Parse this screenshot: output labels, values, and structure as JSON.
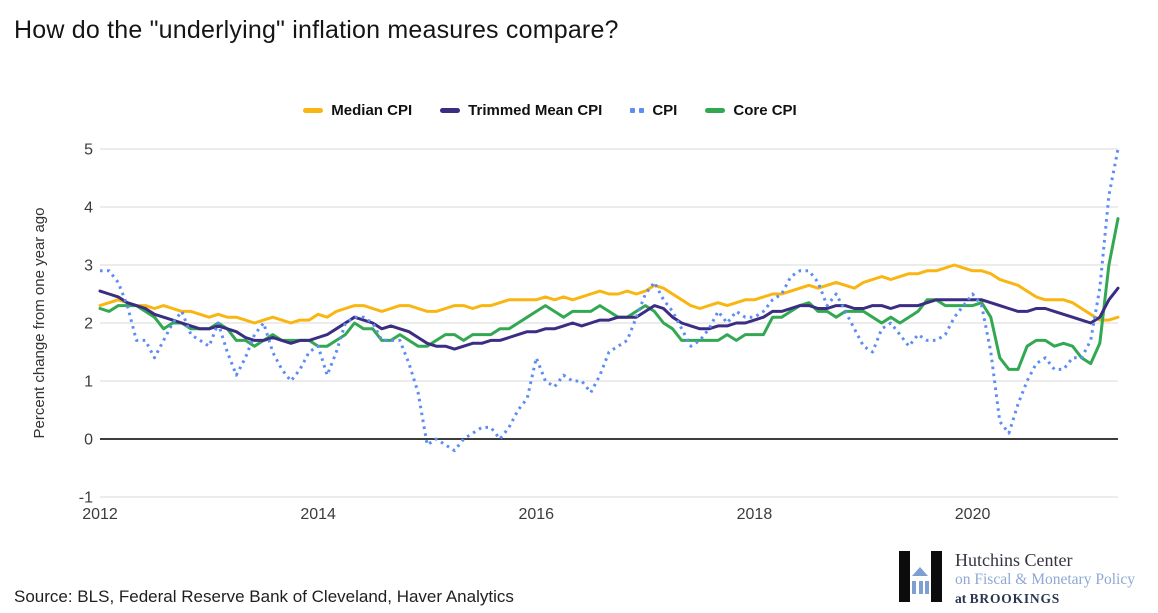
{
  "page": {
    "title": "How do the \"underlying\" inflation measures compare?",
    "source_note": "Source: BLS, Federal Reserve Bank of Cleveland, Haver Analytics"
  },
  "logo": {
    "line1": "Hutchins Center",
    "line2": "on Fiscal & Monetary Policy",
    "line3_prefix": "at",
    "line3_name": "BROOKINGS",
    "mark_color": "#0c0c0c",
    "accent_color": "#7d9fd3",
    "name_color": "#35343f"
  },
  "chart_data": {
    "type": "line",
    "title": "How do the \"underlying\" inflation measures compare?",
    "xlabel": "",
    "ylabel": "Percent change from one year ago",
    "ylim": [
      -1,
      5
    ],
    "yticks": [
      5,
      4,
      3,
      2,
      1,
      0,
      -1
    ],
    "x_start": "2012-01",
    "x_end": "2021-05",
    "x_frequency": "monthly",
    "xticks": [
      {
        "label": "2012",
        "index": 0
      },
      {
        "label": "2014",
        "index": 24
      },
      {
        "label": "2016",
        "index": 48
      },
      {
        "label": "2018",
        "index": 72
      },
      {
        "label": "2020",
        "index": 96
      }
    ],
    "grid": "horizontal",
    "legend_position": "top",
    "background": "#ffffff",
    "series": [
      {
        "name": "Median CPI",
        "color": "#F9B612",
        "style": "solid",
        "values": [
          2.3,
          2.35,
          2.4,
          2.35,
          2.3,
          2.3,
          2.25,
          2.3,
          2.25,
          2.2,
          2.2,
          2.15,
          2.1,
          2.15,
          2.1,
          2.1,
          2.05,
          2.0,
          2.05,
          2.1,
          2.05,
          2.0,
          2.05,
          2.05,
          2.15,
          2.1,
          2.2,
          2.25,
          2.3,
          2.3,
          2.25,
          2.2,
          2.25,
          2.3,
          2.3,
          2.25,
          2.2,
          2.2,
          2.25,
          2.3,
          2.3,
          2.25,
          2.3,
          2.3,
          2.35,
          2.4,
          2.4,
          2.4,
          2.4,
          2.45,
          2.4,
          2.45,
          2.4,
          2.45,
          2.5,
          2.55,
          2.5,
          2.5,
          2.55,
          2.5,
          2.55,
          2.65,
          2.6,
          2.5,
          2.4,
          2.3,
          2.25,
          2.3,
          2.35,
          2.3,
          2.35,
          2.4,
          2.4,
          2.45,
          2.5,
          2.5,
          2.55,
          2.6,
          2.65,
          2.6,
          2.65,
          2.7,
          2.65,
          2.6,
          2.7,
          2.75,
          2.8,
          2.75,
          2.8,
          2.85,
          2.85,
          2.9,
          2.9,
          2.95,
          3.0,
          2.95,
          2.9,
          2.9,
          2.85,
          2.75,
          2.7,
          2.65,
          2.55,
          2.45,
          2.4,
          2.4,
          2.4,
          2.35,
          2.25,
          2.15,
          2.05,
          2.05,
          2.1
        ]
      },
      {
        "name": "Trimmed Mean CPI",
        "color": "#3B2D82",
        "style": "solid",
        "values": [
          2.55,
          2.5,
          2.45,
          2.35,
          2.3,
          2.25,
          2.15,
          2.1,
          2.05,
          2.0,
          1.95,
          1.9,
          1.9,
          1.95,
          1.9,
          1.85,
          1.75,
          1.7,
          1.7,
          1.75,
          1.7,
          1.65,
          1.7,
          1.7,
          1.75,
          1.8,
          1.9,
          2.0,
          2.1,
          2.05,
          2.0,
          1.9,
          1.95,
          1.9,
          1.85,
          1.75,
          1.65,
          1.6,
          1.6,
          1.55,
          1.6,
          1.65,
          1.65,
          1.7,
          1.7,
          1.75,
          1.8,
          1.85,
          1.85,
          1.9,
          1.9,
          1.95,
          2.0,
          1.95,
          2.0,
          2.05,
          2.05,
          2.1,
          2.1,
          2.1,
          2.2,
          2.3,
          2.25,
          2.1,
          2.0,
          1.95,
          1.9,
          1.9,
          1.95,
          1.95,
          2.0,
          2.0,
          2.05,
          2.1,
          2.2,
          2.2,
          2.25,
          2.3,
          2.3,
          2.25,
          2.25,
          2.3,
          2.3,
          2.25,
          2.25,
          2.3,
          2.3,
          2.25,
          2.3,
          2.3,
          2.3,
          2.35,
          2.4,
          2.4,
          2.4,
          2.4,
          2.4,
          2.4,
          2.35,
          2.3,
          2.25,
          2.2,
          2.2,
          2.25,
          2.25,
          2.2,
          2.15,
          2.1,
          2.05,
          2.0,
          2.1,
          2.4,
          2.6
        ]
      },
      {
        "name": "CPI",
        "color": "#5C8DF5",
        "style": "dotted",
        "values": [
          2.9,
          2.9,
          2.7,
          2.3,
          1.7,
          1.7,
          1.4,
          1.7,
          2.0,
          2.2,
          1.8,
          1.7,
          1.6,
          2.0,
          1.5,
          1.1,
          1.4,
          1.8,
          2.0,
          1.5,
          1.2,
          1.0,
          1.2,
          1.5,
          1.6,
          1.1,
          1.5,
          2.0,
          2.1,
          2.1,
          2.0,
          1.7,
          1.7,
          1.7,
          1.3,
          0.8,
          -0.1,
          0.0,
          -0.1,
          -0.2,
          0.0,
          0.1,
          0.2,
          0.2,
          0.0,
          0.2,
          0.5,
          0.7,
          1.4,
          1.0,
          0.9,
          1.1,
          1.0,
          1.0,
          0.8,
          1.1,
          1.5,
          1.6,
          1.7,
          2.1,
          2.5,
          2.7,
          2.4,
          2.2,
          1.9,
          1.6,
          1.7,
          1.9,
          2.2,
          2.0,
          2.2,
          2.1,
          2.1,
          2.2,
          2.4,
          2.5,
          2.8,
          2.9,
          2.9,
          2.7,
          2.3,
          2.5,
          2.2,
          1.9,
          1.6,
          1.5,
          1.9,
          2.0,
          1.8,
          1.6,
          1.8,
          1.7,
          1.7,
          1.8,
          2.1,
          2.3,
          2.5,
          2.3,
          1.5,
          0.3,
          0.1,
          0.6,
          1.0,
          1.3,
          1.4,
          1.2,
          1.2,
          1.4,
          1.4,
          1.7,
          2.6,
          4.2,
          5.0
        ]
      },
      {
        "name": "Core CPI",
        "color": "#33A852",
        "style": "solid",
        "values": [
          2.25,
          2.2,
          2.3,
          2.3,
          2.3,
          2.2,
          2.1,
          1.9,
          2.0,
          2.0,
          1.9,
          1.9,
          1.9,
          2.0,
          1.9,
          1.7,
          1.7,
          1.6,
          1.7,
          1.8,
          1.7,
          1.7,
          1.7,
          1.7,
          1.6,
          1.6,
          1.7,
          1.8,
          2.0,
          1.9,
          1.9,
          1.7,
          1.7,
          1.8,
          1.7,
          1.6,
          1.6,
          1.7,
          1.8,
          1.8,
          1.7,
          1.8,
          1.8,
          1.8,
          1.9,
          1.9,
          2.0,
          2.1,
          2.2,
          2.3,
          2.2,
          2.1,
          2.2,
          2.2,
          2.2,
          2.3,
          2.2,
          2.1,
          2.1,
          2.2,
          2.3,
          2.2,
          2.0,
          1.9,
          1.7,
          1.7,
          1.7,
          1.7,
          1.7,
          1.8,
          1.7,
          1.8,
          1.8,
          1.8,
          2.1,
          2.1,
          2.2,
          2.3,
          2.35,
          2.2,
          2.2,
          2.1,
          2.2,
          2.2,
          2.2,
          2.1,
          2.0,
          2.1,
          2.0,
          2.1,
          2.2,
          2.4,
          2.4,
          2.3,
          2.3,
          2.3,
          2.3,
          2.35,
          2.1,
          1.4,
          1.2,
          1.2,
          1.6,
          1.7,
          1.7,
          1.6,
          1.65,
          1.6,
          1.4,
          1.3,
          1.65,
          3.0,
          3.8
        ]
      }
    ]
  }
}
